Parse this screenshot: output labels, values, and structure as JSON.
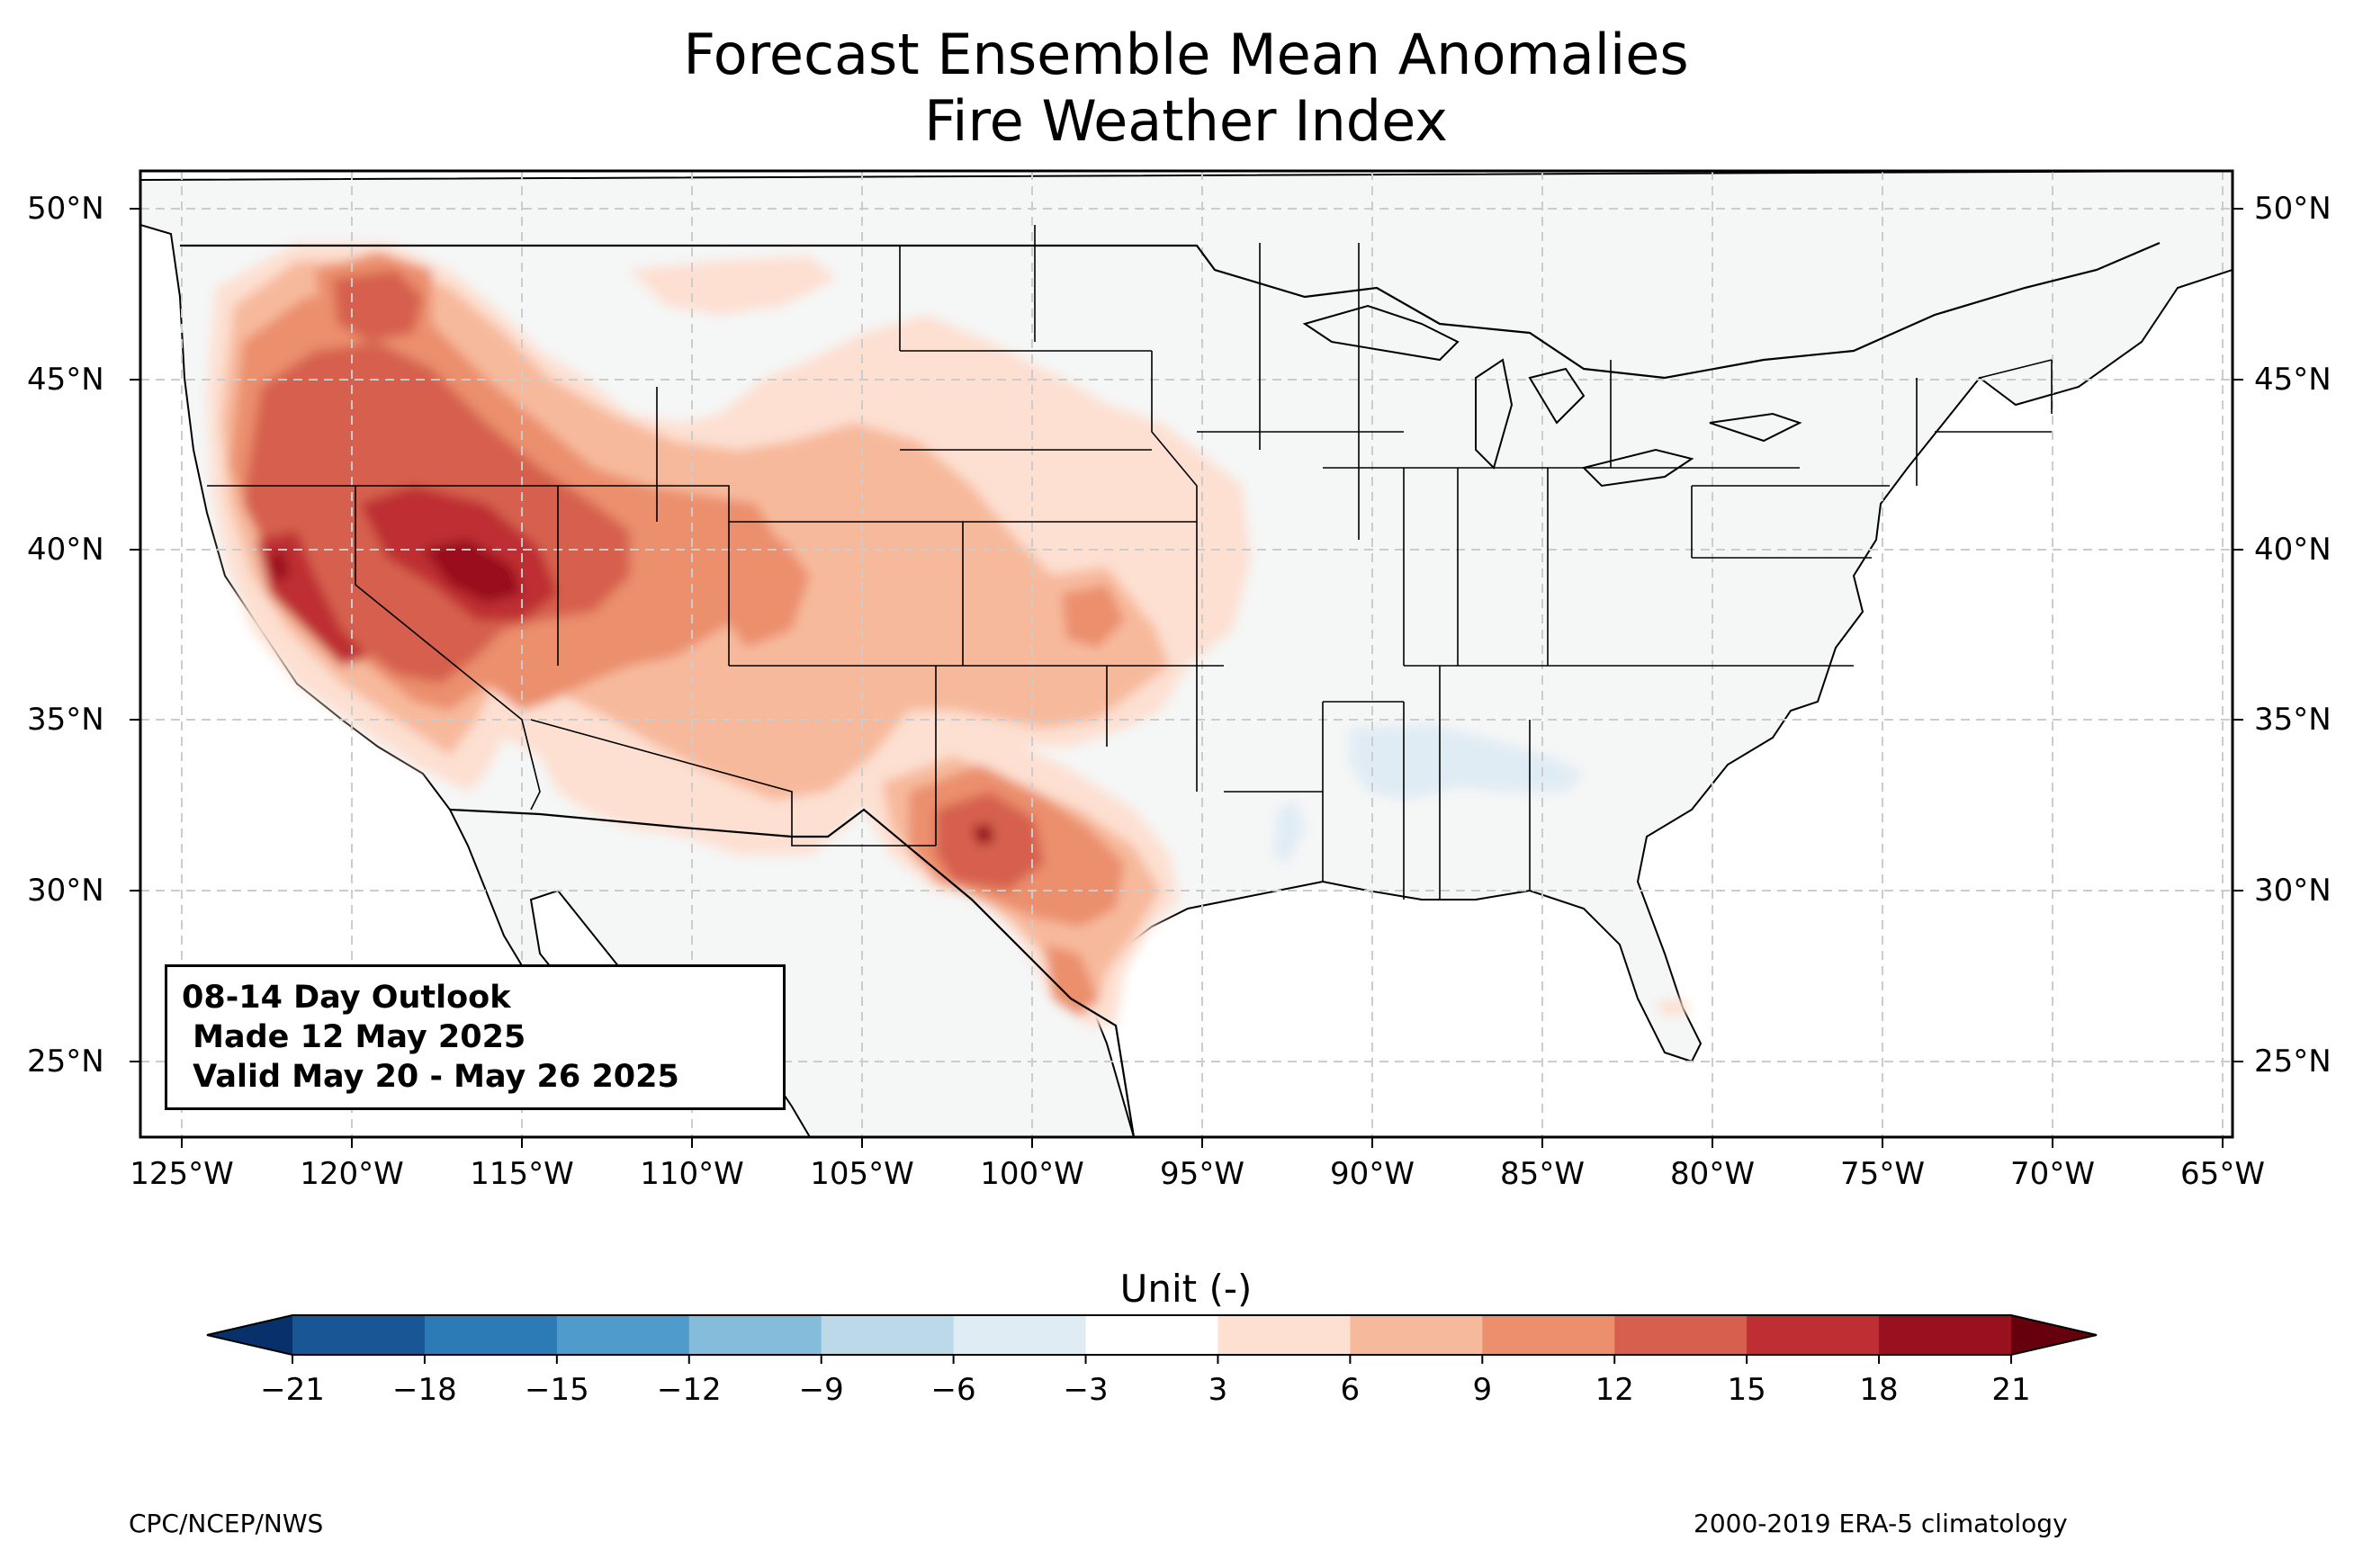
{
  "title": {
    "line1": "Forecast Ensemble Mean Anomalies",
    "line2": "Fire Weather Index"
  },
  "map": {
    "projection": "PlateCarree",
    "lon_range": [
      -126.3,
      -64.9
    ],
    "lat_range": [
      22.7,
      51.2
    ],
    "gridlines": "dashed",
    "lat_ticks": [
      "50°N",
      "45°N",
      "40°N",
      "35°N",
      "30°N",
      "25°N"
    ],
    "lon_ticks": [
      "125°W",
      "120°W",
      "115°W",
      "110°W",
      "105°W",
      "100°W",
      "95°W",
      "90°W",
      "85°W",
      "80°W",
      "75°W",
      "70°W",
      "65°W"
    ]
  },
  "info_box": {
    "line1": "08-14 Day Outlook",
    "line2": " Made 12 May 2025",
    "line3": " Valid May 20 - May 26 2025"
  },
  "colorbar": {
    "title": "Unit (-)",
    "ticks": [
      "−21",
      "−18",
      "−15",
      "−12",
      "−9",
      "−6",
      "−3",
      "3",
      "6",
      "9",
      "12",
      "15",
      "18",
      "21"
    ],
    "levels": [
      -21,
      -18,
      -15,
      -12,
      -9,
      -6,
      -3,
      3,
      6,
      9,
      12,
      15,
      18,
      21
    ],
    "colors": [
      "#08306b",
      "#195696",
      "#2c7bb6",
      "#4f9bcb",
      "#86bcdb",
      "#bcd9ea",
      "#e0ecf4",
      "#ffffff",
      "#fde0d2",
      "#f7b99c",
      "#eb8f6d",
      "#d6604d",
      "#be2e33",
      "#99101f",
      "#67000d"
    ]
  },
  "footer": {
    "left": "CPC/NCEP/NWS",
    "right": "2000-2019 ERA-5 climatology"
  }
}
